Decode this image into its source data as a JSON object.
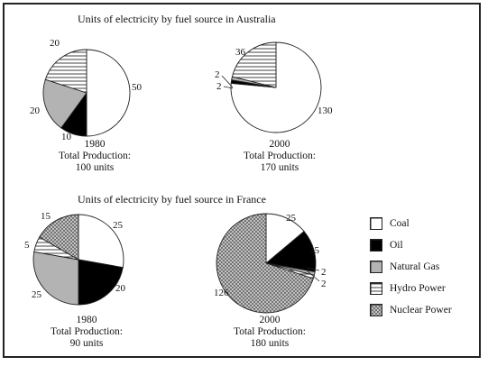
{
  "titles": {
    "australia": "Units of electricity by fuel source in Australia",
    "france": "Units of electricity by fuel source in France"
  },
  "legend": [
    {
      "key": "coal",
      "label": "Coal"
    },
    {
      "key": "oil",
      "label": "Oil"
    },
    {
      "key": "gas",
      "label": "Natural Gas"
    },
    {
      "key": "hydro",
      "label": "Hydro Power"
    },
    {
      "key": "nuclear",
      "label": "Nuclear Power"
    }
  ],
  "chart_data": [
    {
      "type": "pie",
      "title": "Units of electricity by fuel source in Australia",
      "year": "1980",
      "total_line1": "Total Production:",
      "total_line2": "100 units",
      "slices": [
        {
          "key": "coal",
          "label": "Coal",
          "value": 50
        },
        {
          "key": "oil",
          "label": "Oil",
          "value": 10
        },
        {
          "key": "gas",
          "label": "Natural Gas",
          "value": 20
        },
        {
          "key": "hydro",
          "label": "Hydro Power",
          "value": 20
        }
      ]
    },
    {
      "type": "pie",
      "title": "Units of electricity by fuel source in Australia",
      "year": "2000",
      "total_line1": "Total Production:",
      "total_line2": "170 units",
      "slices": [
        {
          "key": "coal",
          "label": "Coal",
          "value": 130
        },
        {
          "key": "oil",
          "label": "Oil",
          "value": 2
        },
        {
          "key": "gas",
          "label": "Natural Gas",
          "value": 2
        },
        {
          "key": "hydro",
          "label": "Hydro Power",
          "value": 36
        }
      ]
    },
    {
      "type": "pie",
      "title": "Units of electricity by fuel source in France",
      "year": "1980",
      "total_line1": "Total Production:",
      "total_line2": "90 units",
      "slices": [
        {
          "key": "coal",
          "label": "Coal",
          "value": 25
        },
        {
          "key": "oil",
          "label": "Oil",
          "value": 20
        },
        {
          "key": "gas",
          "label": "Natural Gas",
          "value": 25
        },
        {
          "key": "hydro",
          "label": "Hydro Power",
          "value": 5
        },
        {
          "key": "nuclear",
          "label": "Nuclear Power",
          "value": 15
        }
      ]
    },
    {
      "type": "pie",
      "title": "Units of electricity by fuel source in France",
      "year": "2000",
      "total_line1": "Total Production:",
      "total_line2": "180 units",
      "slices": [
        {
          "key": "coal",
          "label": "Coal",
          "value": 25
        },
        {
          "key": "oil",
          "label": "Oil",
          "value": 25
        },
        {
          "key": "gas",
          "label": "Natural Gas",
          "value": 2
        },
        {
          "key": "hydro",
          "label": "Hydro Power",
          "value": 2
        },
        {
          "key": "nuclear",
          "label": "Nuclear Power",
          "value": 126
        }
      ]
    }
  ]
}
